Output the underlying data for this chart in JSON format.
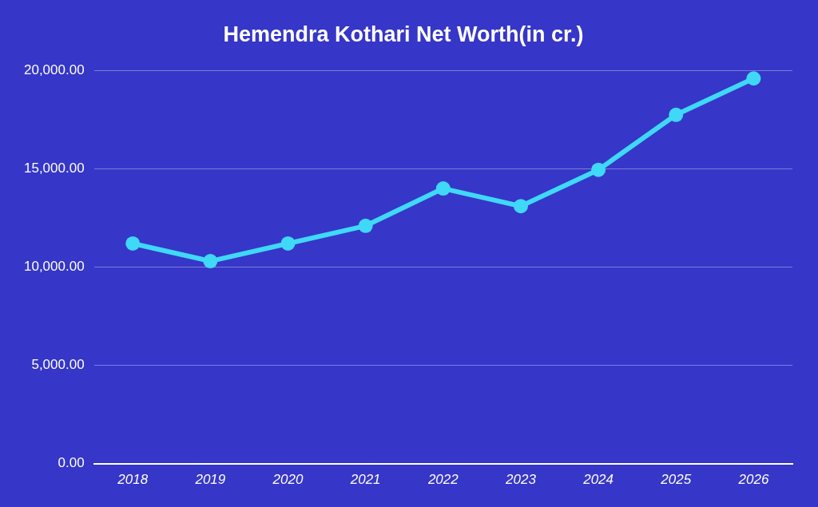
{
  "chart_data": {
    "type": "line",
    "title": "Hemendra Kothari Net Worth(in cr.)",
    "categories": [
      "2018",
      "2019",
      "2020",
      "2021",
      "2022",
      "2023",
      "2024",
      "2025",
      "2026"
    ],
    "series": [
      {
        "color": "#3fd8f8",
        "values": [
          11200,
          10300,
          11200,
          12100,
          14000,
          13100,
          14950,
          17750,
          19600
        ]
      }
    ],
    "ylim": [
      0,
      20000
    ],
    "yticks": [
      {
        "value": 0,
        "label": "0.00"
      },
      {
        "value": 5000,
        "label": "5,000.00"
      },
      {
        "value": 10000,
        "label": "10,000.00"
      },
      {
        "value": 15000,
        "label": "15,000.00"
      },
      {
        "value": 20000,
        "label": "20,000.00"
      }
    ],
    "grid": "y",
    "legend": false,
    "marker": "circle",
    "line_style": "solid"
  }
}
